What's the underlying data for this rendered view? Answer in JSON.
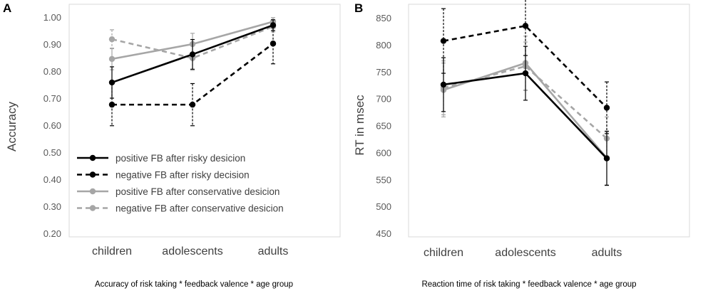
{
  "colors": {
    "black": "#000000",
    "gray": "#a6a6a6",
    "errbar_gray": "#a6a6a6"
  },
  "chart_data": [
    {
      "panel": "A",
      "type": "line",
      "categories": [
        "children",
        "adolescents",
        "adults"
      ],
      "ylabel": "Accuracy",
      "xlabel": "",
      "ylim": [
        0.2,
        1.0
      ],
      "yticks": [
        "0.20",
        "0.30",
        "0.40",
        "0.50",
        "0.60",
        "0.70",
        "0.80",
        "0.90",
        "1.00"
      ],
      "caption": "Accuracy of risk taking * feedback valence * age group",
      "legend_position": "lower-left",
      "series": [
        {
          "name": "positive FB after risky desicion",
          "color": "black",
          "dash": "solid",
          "values": [
            0.758,
            0.862,
            0.97
          ],
          "err": [
            0.058,
            0.055,
            0.02
          ]
        },
        {
          "name": "negative FB after risky decision",
          "color": "black",
          "dash": "dashed",
          "values": [
            0.676,
            0.676,
            0.902
          ],
          "err": [
            0.078,
            0.078,
            0.075
          ]
        },
        {
          "name": "positive FB after conservative desicion",
          "color": "gray",
          "dash": "solid",
          "values": [
            0.845,
            0.9,
            0.983
          ],
          "err": [
            0.04,
            0.04,
            0.015
          ]
        },
        {
          "name": "negative FB after conservative desicion",
          "color": "gray",
          "dash": "dashed",
          "values": [
            0.918,
            0.848,
            0.965
          ],
          "err": [
            0.035,
            0.045,
            0.02
          ]
        }
      ]
    },
    {
      "panel": "B",
      "type": "line",
      "categories": [
        "children",
        "adolescents",
        "adults"
      ],
      "ylabel": "RT in msec",
      "xlabel": "",
      "ylim": [
        450,
        850
      ],
      "yticks": [
        "450",
        "500",
        "550",
        "600",
        "650",
        "700",
        "750",
        "800",
        "850"
      ],
      "caption": "Reaction time of risk taking * feedback valence * age group",
      "series": [
        {
          "name": "positive FB after risky desicion",
          "color": "black",
          "dash": "solid",
          "values": [
            726,
            747,
            589
          ],
          "err": [
            50,
            50,
            50
          ]
        },
        {
          "name": "negative FB after risky decision",
          "color": "black",
          "dash": "dashed",
          "values": [
            807,
            835,
            683
          ],
          "err": [
            60,
            55,
            48
          ]
        },
        {
          "name": "positive FB after conservative desicion",
          "color": "gray",
          "dash": "solid",
          "values": [
            716,
            766,
            590
          ],
          "err": [
            50,
            50,
            50
          ]
        },
        {
          "name": "negative FB after conservative desicion",
          "color": "gray",
          "dash": "dashed",
          "values": [
            720,
            760,
            626
          ],
          "err": [
            50,
            45,
            40
          ]
        }
      ]
    }
  ]
}
